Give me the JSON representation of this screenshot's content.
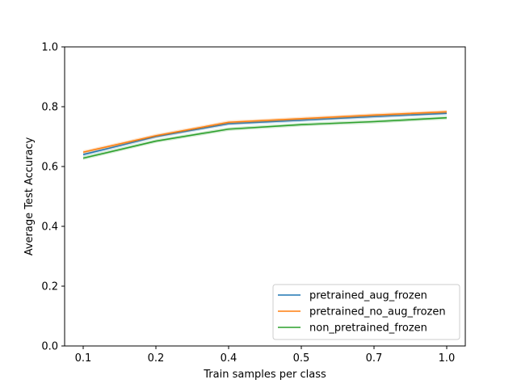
{
  "chart_data": {
    "type": "line",
    "title": "",
    "xlabel": "Train samples per class",
    "ylabel": "Average Test Accuracy",
    "categories": [
      "0.1",
      "0.2",
      "0.4",
      "0.5",
      "0.7",
      "1.0"
    ],
    "ylim": [
      0.0,
      1.0
    ],
    "yticks": [
      "0.0",
      "0.2",
      "0.4",
      "0.6",
      "0.8",
      "1.0"
    ],
    "grid": false,
    "legend_position": "lower-right",
    "series": [
      {
        "name": "pretrained_aug_frozen",
        "color": "#1f77b4",
        "values": [
          0.64,
          0.7,
          0.743,
          0.755,
          0.767,
          0.778
        ]
      },
      {
        "name": "pretrained_no_aug_frozen",
        "color": "#ff7f0e",
        "values": [
          0.648,
          0.703,
          0.748,
          0.76,
          0.772,
          0.783
        ]
      },
      {
        "name": "non_pretrained_frozen",
        "color": "#2ca02c",
        "values": [
          0.628,
          0.685,
          0.725,
          0.74,
          0.75,
          0.763
        ]
      }
    ]
  }
}
